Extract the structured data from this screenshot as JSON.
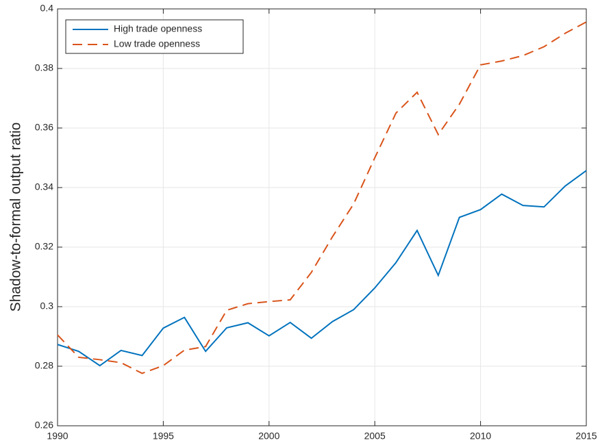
{
  "chart_data": {
    "type": "line",
    "ylabel": "Shadow-to-formal output ratio",
    "x": [
      1990,
      1991,
      1992,
      1993,
      1994,
      1995,
      1996,
      1997,
      1998,
      1999,
      2000,
      2001,
      2002,
      2003,
      2004,
      2005,
      2006,
      2007,
      2008,
      2009,
      2010,
      2011,
      2012,
      2013,
      2014,
      2015
    ],
    "series": [
      {
        "name": "High trade openness",
        "color": "#0072bd",
        "style": "solid",
        "values": [
          0.2873,
          0.285,
          0.2802,
          0.2853,
          0.2836,
          0.2928,
          0.2964,
          0.285,
          0.2929,
          0.2946,
          0.2902,
          0.2947,
          0.2894,
          0.295,
          0.299,
          0.3063,
          0.3148,
          0.3256,
          0.3105,
          0.33,
          0.3326,
          0.3378,
          0.334,
          0.3335,
          0.3405,
          0.3457
        ]
      },
      {
        "name": "Low trade openness",
        "color": "#d95319",
        "style": "dashed",
        "values": [
          0.2905,
          0.283,
          0.2822,
          0.2812,
          0.2776,
          0.2802,
          0.2854,
          0.2866,
          0.2988,
          0.301,
          0.3017,
          0.3023,
          0.3115,
          0.3235,
          0.3345,
          0.35,
          0.365,
          0.372,
          0.3578,
          0.368,
          0.3812,
          0.3825,
          0.3843,
          0.3873,
          0.3918,
          0.3956
        ]
      }
    ],
    "xlim": [
      1990,
      2015
    ],
    "xticks": [
      1990,
      1995,
      2000,
      2005,
      2010,
      2015
    ],
    "ylim": [
      0.26,
      0.4
    ],
    "yticks": [
      0.26,
      0.28,
      0.3,
      0.32,
      0.34,
      0.36,
      0.38,
      0.4
    ],
    "grid": true,
    "legend": "northwest"
  }
}
